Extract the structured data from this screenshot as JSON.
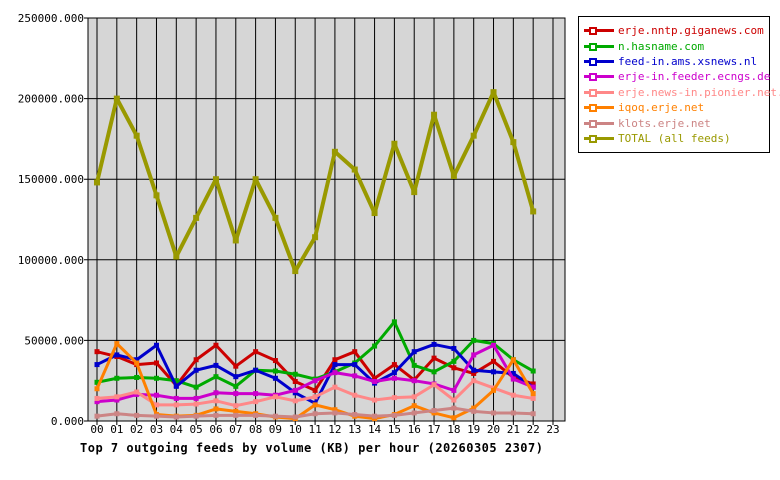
{
  "page": {
    "background": "#ffffff",
    "text_color": "#000000"
  },
  "chart_data": {
    "type": "line",
    "title": "Top 7 outgoing feeds by volume (KB) per hour (20260305 2307)",
    "xlabel": "",
    "ylabel": "",
    "x_categories": [
      "00",
      "01",
      "02",
      "03",
      "04",
      "05",
      "06",
      "07",
      "08",
      "09",
      "10",
      "11",
      "12",
      "13",
      "14",
      "15",
      "16",
      "17",
      "18",
      "19",
      "20",
      "21",
      "22",
      "23"
    ],
    "y_tick_labels": [
      "0.000",
      "50000.000",
      "100000.000",
      "150000.000",
      "200000.000",
      "250000.000"
    ],
    "ylim": [
      0,
      250000
    ],
    "y_tick_interval": 50000,
    "grid": true,
    "grid_color": "#000000",
    "plot_background": "#d6d6d6",
    "legend_position": "top-right",
    "marker": "open-square",
    "series": [
      {
        "name": "erje.nntp.giganews.com",
        "color": "#cc0000",
        "line_width": 3,
        "values": [
          43000,
          40000,
          35000,
          36000,
          22000,
          38000,
          47000,
          34000,
          43000,
          37500,
          24500,
          19000,
          38000,
          43000,
          26500,
          35000,
          25500,
          39000,
          33000,
          29500,
          37000,
          27000,
          23000
        ]
      },
      {
        "name": "n.hasname.com",
        "color": "#00aa00",
        "line_width": 3,
        "values": [
          24000,
          26500,
          27000,
          26500,
          25000,
          21000,
          27500,
          21500,
          31500,
          31000,
          29000,
          26000,
          30500,
          36000,
          46500,
          61500,
          34500,
          30500,
          37000,
          50000,
          48000,
          38000,
          31000
        ]
      },
      {
        "name": "feed-in.ams.xsnews.nl",
        "color": "#0000cc",
        "line_width": 3,
        "values": [
          35000,
          41000,
          38000,
          47000,
          21500,
          31500,
          34500,
          27500,
          31500,
          26500,
          17500,
          11000,
          35000,
          35000,
          23500,
          30000,
          43000,
          47500,
          45000,
          31500,
          30500,
          29500,
          21000
        ]
      },
      {
        "name": "erje-in.feeder.ecngs.de",
        "color": "#cc00cc",
        "line_width": 3,
        "values": [
          12000,
          13000,
          16500,
          16000,
          14000,
          14000,
          17500,
          17000,
          17000,
          16000,
          19000,
          25000,
          30000,
          28000,
          24500,
          26500,
          25000,
          23000,
          19000,
          41000,
          47000,
          26000,
          21000
        ]
      },
      {
        "name": "erje.news-in.pionier.net.pl",
        "color": "#ff8888",
        "line_width": 3,
        "values": [
          14000,
          15000,
          18000,
          10000,
          10000,
          10500,
          12500,
          9500,
          12000,
          15000,
          12500,
          15000,
          21000,
          16000,
          13000,
          14500,
          15000,
          22500,
          13000,
          25000,
          20500,
          16000,
          14000
        ]
      },
      {
        "name": "iqoq.erje.net",
        "color": "#ff8000",
        "line_width": 3,
        "values": [
          20000,
          48000,
          36000,
          4000,
          3000,
          3500,
          7500,
          6000,
          4500,
          2500,
          1500,
          10000,
          7000,
          3000,
          1500,
          4000,
          9500,
          5000,
          2000,
          8000,
          19000,
          38000,
          17000
        ]
      },
      {
        "name": "klots.erje.net",
        "color": "#cc8484",
        "line_width": 3,
        "values": [
          3000,
          4500,
          3500,
          3000,
          2500,
          3000,
          3500,
          3500,
          3500,
          3000,
          2500,
          4500,
          5000,
          4000,
          3000,
          3500,
          5000,
          6500,
          8000,
          6000,
          5000,
          5000,
          4500
        ]
      },
      {
        "name": "TOTAL (all feeds)",
        "color": "#999900",
        "line_width": 4,
        "values": [
          148000,
          200000,
          177000,
          140000,
          102000,
          126000,
          150000,
          112000,
          150000,
          126000,
          93000,
          114000,
          167000,
          156000,
          129000,
          172000,
          142000,
          190000,
          152000,
          177000,
          204000,
          173000,
          130000
        ]
      }
    ]
  }
}
